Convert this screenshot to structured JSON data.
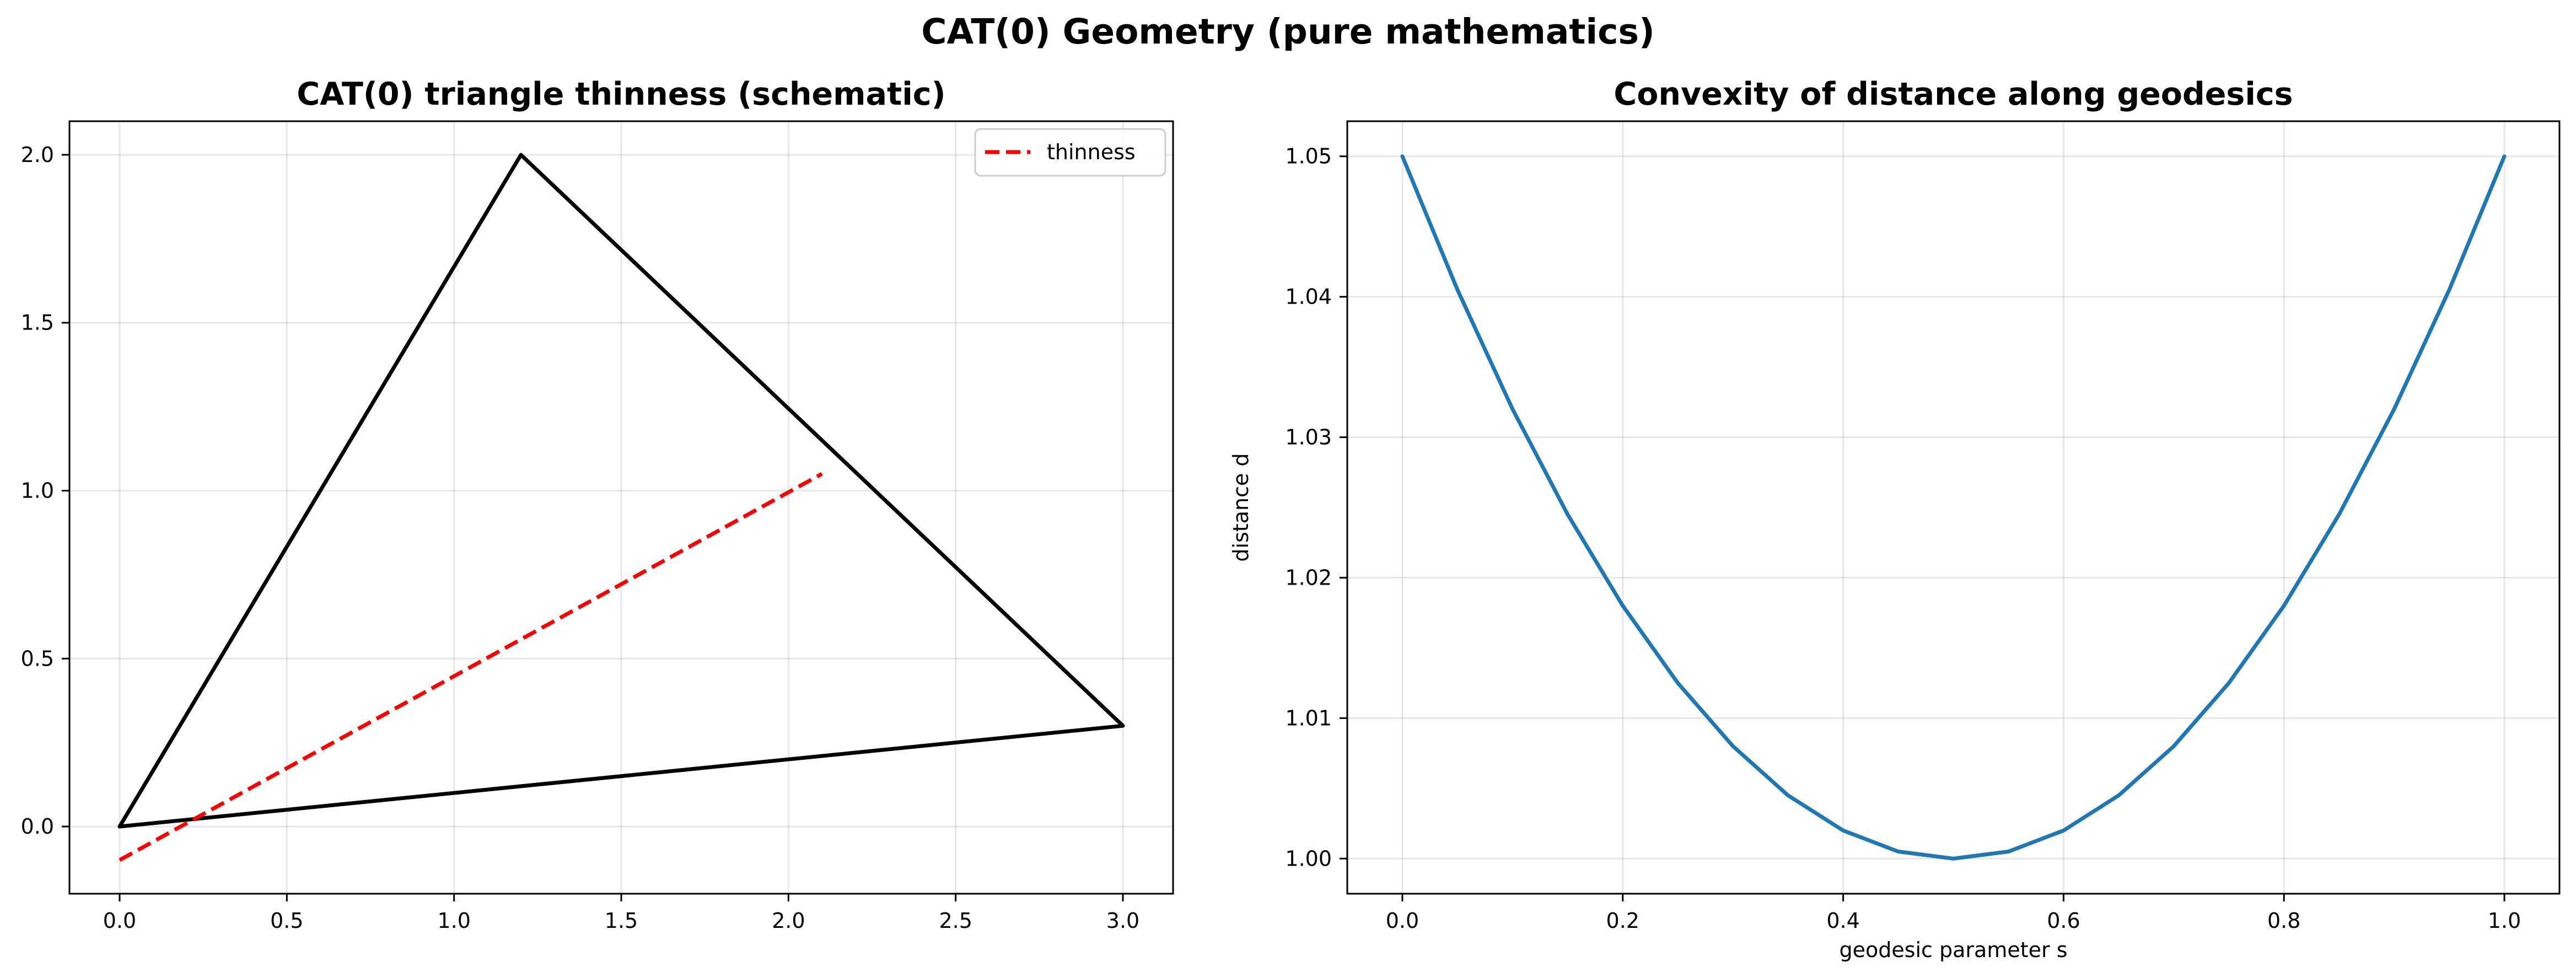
{
  "figure": {
    "suptitle": "CAT(0) Geometry (pure mathematics)"
  },
  "chart_data": [
    {
      "type": "line",
      "title": "CAT(0) triangle thinness (schematic)",
      "xlabel": "",
      "ylabel": "",
      "xlim": [
        -0.15,
        3.15
      ],
      "ylim": [
        -0.2,
        2.1
      ],
      "x_ticks": [
        0.0,
        0.5,
        1.0,
        1.5,
        2.0,
        2.5,
        3.0
      ],
      "x_tick_labels": [
        "0.0",
        "0.5",
        "1.0",
        "1.5",
        "2.0",
        "2.5",
        "3.0"
      ],
      "y_ticks": [
        0.0,
        0.5,
        1.0,
        1.5,
        2.0
      ],
      "y_tick_labels": [
        "0.0",
        "0.5",
        "1.0",
        "1.5",
        "2.0"
      ],
      "grid": true,
      "legend_position": "upper right",
      "series": [
        {
          "x": [
            0.0,
            1.2,
            3.0,
            0.0
          ],
          "y": [
            0.0,
            2.0,
            0.3,
            0.0
          ],
          "color": "#000000",
          "style": "solid"
        },
        {
          "name": "thinness",
          "x": [
            0.0,
            2.1
          ],
          "y": [
            -0.1,
            1.05
          ],
          "color": "#ff0000",
          "style": "dashed"
        }
      ]
    },
    {
      "type": "line",
      "title": "Convexity of distance along geodesics",
      "xlabel": "geodesic parameter s",
      "ylabel": "distance d",
      "xlim": [
        -0.05,
        1.05
      ],
      "ylim": [
        0.9975,
        1.0525
      ],
      "x_ticks": [
        0.0,
        0.2,
        0.4,
        0.6,
        0.8,
        1.0
      ],
      "x_tick_labels": [
        "0.0",
        "0.2",
        "0.4",
        "0.6",
        "0.8",
        "1.0"
      ],
      "y_ticks": [
        1.0,
        1.01,
        1.02,
        1.03,
        1.04,
        1.05
      ],
      "y_tick_labels": [
        "1.00",
        "1.01",
        "1.02",
        "1.03",
        "1.04",
        "1.05"
      ],
      "grid": true,
      "series": [
        {
          "x": [
            0.0,
            0.05,
            0.1,
            0.15,
            0.2,
            0.25,
            0.3,
            0.35,
            0.4,
            0.45,
            0.5,
            0.55,
            0.6,
            0.65,
            0.7,
            0.75,
            0.8,
            0.85,
            0.9,
            0.95,
            1.0
          ],
          "y": [
            1.05,
            1.0405,
            1.032,
            1.0245,
            1.018,
            1.0125,
            1.008,
            1.0045,
            1.002,
            1.0005,
            1.0,
            1.0005,
            1.002,
            1.0045,
            1.008,
            1.0125,
            1.018,
            1.0245,
            1.032,
            1.0405,
            1.05
          ],
          "color": "#1f77b4",
          "style": "solid"
        }
      ]
    }
  ]
}
